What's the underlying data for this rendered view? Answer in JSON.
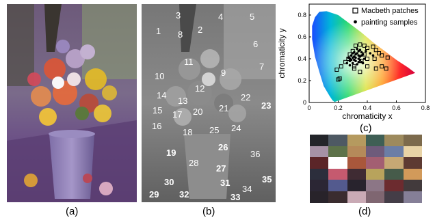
{
  "captions": {
    "a": "(a)",
    "b": "(b)",
    "c": "(c)",
    "d": "(d)"
  },
  "panel_b_labels": [
    "1",
    "2",
    "3",
    "4",
    "5",
    "6",
    "7",
    "8",
    "9",
    "10",
    "11",
    "12",
    "13",
    "14",
    "15",
    "16",
    "17",
    "18",
    "19",
    "20",
    "21",
    "22",
    "23",
    "24",
    "25",
    "26",
    "27",
    "28",
    "29",
    "30",
    "31",
    "32",
    "33",
    "34",
    "35",
    "36"
  ],
  "panel_b_bold": [
    19,
    23,
    26,
    27,
    29,
    30,
    31,
    32,
    33,
    35
  ],
  "chart_data": {
    "type": "scatter",
    "title": "",
    "xlabel": "chromaticity x",
    "ylabel": "chromaticity y",
    "xlim": [
      0,
      0.8
    ],
    "ylim": [
      0,
      0.9
    ],
    "xticks": [
      "0",
      "0.2",
      "0.4",
      "0.6",
      "0.8"
    ],
    "yticks": [
      "0",
      "0.2",
      "0.4",
      "0.6",
      "0.8"
    ],
    "legend": "top-right",
    "series": [
      {
        "name": "Macbeth patches",
        "marker": "square",
        "points": [
          [
            0.2,
            0.21
          ],
          [
            0.21,
            0.22
          ],
          [
            0.19,
            0.3
          ],
          [
            0.22,
            0.33
          ],
          [
            0.25,
            0.37
          ],
          [
            0.27,
            0.4
          ],
          [
            0.28,
            0.44
          ],
          [
            0.3,
            0.47
          ],
          [
            0.32,
            0.52
          ],
          [
            0.35,
            0.53
          ],
          [
            0.38,
            0.52
          ],
          [
            0.4,
            0.5
          ],
          [
            0.44,
            0.51
          ],
          [
            0.46,
            0.48
          ],
          [
            0.48,
            0.45
          ],
          [
            0.5,
            0.43
          ],
          [
            0.54,
            0.41
          ],
          [
            0.45,
            0.4
          ],
          [
            0.4,
            0.4
          ],
          [
            0.38,
            0.44
          ],
          [
            0.31,
            0.33
          ],
          [
            0.36,
            0.38
          ],
          [
            0.4,
            0.33
          ],
          [
            0.46,
            0.31
          ],
          [
            0.5,
            0.33
          ],
          [
            0.53,
            0.31
          ],
          [
            0.35,
            0.28
          ],
          [
            0.31,
            0.31
          ]
        ]
      },
      {
        "name": "painting samples",
        "marker": "dot",
        "points": [
          [
            0.26,
            0.36
          ],
          [
            0.28,
            0.38
          ],
          [
            0.29,
            0.39
          ],
          [
            0.3,
            0.41
          ],
          [
            0.31,
            0.42
          ],
          [
            0.32,
            0.44
          ],
          [
            0.33,
            0.45
          ],
          [
            0.34,
            0.47
          ],
          [
            0.35,
            0.48
          ],
          [
            0.36,
            0.46
          ],
          [
            0.37,
            0.44
          ],
          [
            0.3,
            0.36
          ],
          [
            0.32,
            0.38
          ],
          [
            0.34,
            0.4
          ],
          [
            0.35,
            0.42
          ],
          [
            0.33,
            0.35
          ],
          [
            0.36,
            0.37
          ],
          [
            0.38,
            0.4
          ],
          [
            0.28,
            0.34
          ],
          [
            0.31,
            0.39
          ],
          [
            0.29,
            0.43
          ],
          [
            0.34,
            0.43
          ],
          [
            0.31,
            0.46
          ],
          [
            0.27,
            0.41
          ],
          [
            0.42,
            0.45
          ],
          [
            0.44,
            0.43
          ],
          [
            0.37,
            0.36
          ],
          [
            0.33,
            0.49
          ],
          [
            0.3,
            0.45
          ],
          [
            0.35,
            0.39
          ],
          [
            0.39,
            0.47
          ],
          [
            0.32,
            0.41
          ],
          [
            0.34,
            0.37
          ],
          [
            0.36,
            0.43
          ],
          [
            0.28,
            0.4
          ]
        ]
      }
    ]
  },
  "swatches": [
    [
      "#23252a",
      "#4e5963",
      "#b59a5f",
      "#3f5f55",
      "#9d8a5d",
      "#7c6a4c"
    ],
    [
      "#a692a6",
      "#5d7249",
      "#b58a5a",
      "#6e5b7b",
      "#6b7ea6",
      "#e8d3a6"
    ],
    [
      "#5b2528",
      "#ffffff",
      "#a9573b",
      "#a35f72",
      "#c6a874",
      "#5d3a32"
    ],
    [
      "#2c2e3c",
      "#c55a6f",
      "#3f2b33",
      "#b8a35c",
      "#465b4a",
      "#d29a5a"
    ],
    [
      "#2b2634",
      "#535a8e",
      "#28232d",
      "#8c7686",
      "#6c2b2f",
      "#423a3c"
    ],
    [
      "#28232a",
      "#3a2c2f",
      "#c9aab5",
      "#7f6671",
      "#443d47",
      "#857f97"
    ]
  ]
}
